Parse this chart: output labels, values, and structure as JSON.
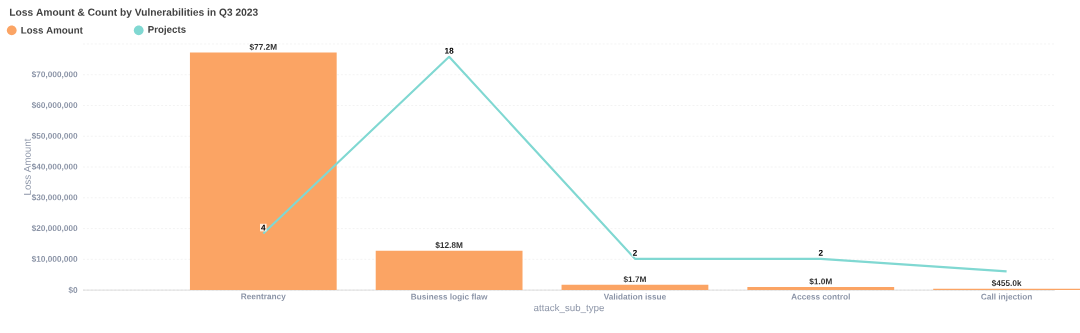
{
  "chart_data": {
    "type": "bar",
    "title": "Loss Amount & Count by Vulnerabilities in Q3 2023",
    "xlabel": "attack_sub_type",
    "ylabel": "Loss Amount",
    "categories": [
      "Reentrancy",
      "Business logic flaw",
      "Validation issue",
      "Access control",
      "Call injection"
    ],
    "series": [
      {
        "name": "Loss Amount",
        "color": "#fba464",
        "values": [
          77200000,
          12800000,
          1700000,
          1000000,
          455000
        ],
        "value_labels": [
          "$77.2M",
          "$12.8M",
          "$1.7M",
          "$1.0M",
          "$455.0k"
        ]
      },
      {
        "name": "Projects",
        "type": "line",
        "axis": "y2",
        "color": "#80d8d2",
        "values": [
          4,
          18,
          2,
          2,
          1
        ],
        "value_labels": [
          "4",
          "18",
          "2",
          "2",
          null
        ]
      }
    ],
    "ylim": [
      0,
      80000000
    ],
    "yticks": [
      {
        "value": 0,
        "label": "$0"
      },
      {
        "value": 10000000,
        "label": "$10,000,000"
      },
      {
        "value": 20000000,
        "label": "$20,000,000"
      },
      {
        "value": 30000000,
        "label": "$30,000,000"
      },
      {
        "value": 40000000,
        "label": "$40,000,000"
      },
      {
        "value": 50000000,
        "label": "$50,000,000"
      },
      {
        "value": 60000000,
        "label": "$60,000,000"
      },
      {
        "value": 70000000,
        "label": "$70,000,000"
      },
      {
        "value": 80000000,
        "label": null
      }
    ],
    "grid": "y",
    "legend": "top left",
    "tick_labels": "xy"
  }
}
